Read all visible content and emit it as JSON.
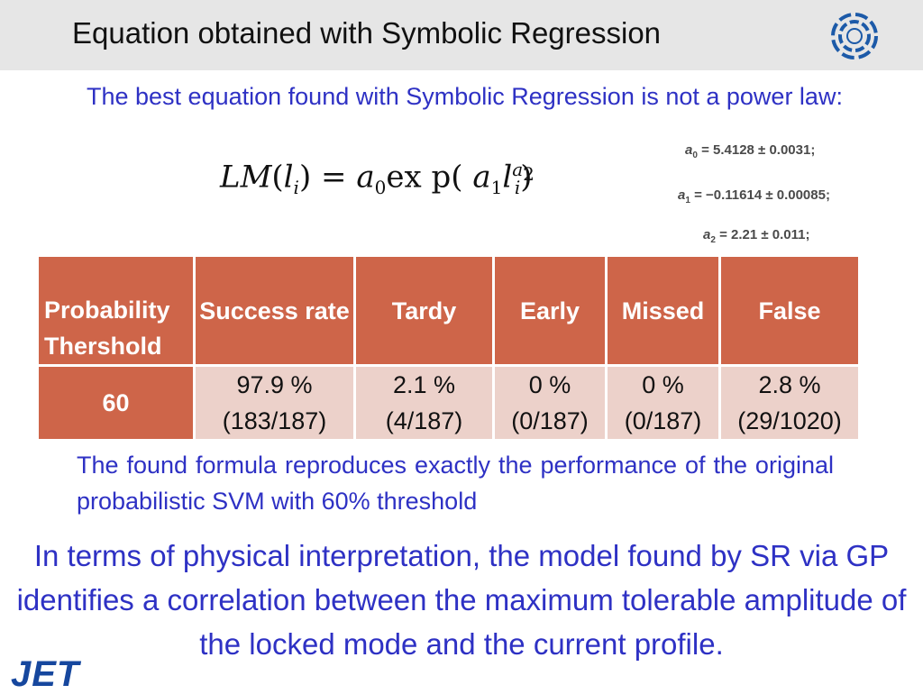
{
  "header": {
    "title": "Equation obtained with Symbolic Regression"
  },
  "intro": {
    "text": "The best equation found with Symbolic Regression is not a power law:"
  },
  "equation": {
    "lhs_func": "LM",
    "lhs_var": "l",
    "lhs_sub": "i",
    "equals": "=",
    "a0": "a",
    "a0_sub": "0",
    "exp": "ex p(",
    "a1": "a",
    "a1_sub": "1",
    "l": "l",
    "l_sub": "i",
    "pow": "a",
    "pow_sub": "2",
    "close": ")"
  },
  "coefficients": [
    {
      "symbol": "a",
      "sub": "0",
      "value": "= 5.4128 ± 0.0031;"
    },
    {
      "symbol": "a",
      "sub": "1",
      "value": "= −0.11614 ± 0.00085;"
    },
    {
      "symbol": "a",
      "sub": "2",
      "value": "= 2.21 ± 0.011;"
    }
  ],
  "table": {
    "headers": [
      "Probability Thershold",
      "Success rate",
      "Tardy",
      "Early",
      "Missed",
      "False"
    ],
    "row": {
      "threshold": "60",
      "success": {
        "pct": "97.9 %",
        "count": "(183/187)"
      },
      "tardy": {
        "pct": "2.1 %",
        "count": "(4/187)"
      },
      "early": {
        "pct": "0 %",
        "count": "(0/187)"
      },
      "missed": {
        "pct": "0 %",
        "count": "(0/187)"
      },
      "false": {
        "pct": "2.8 %",
        "count": "(29/1020)"
      }
    }
  },
  "finding": {
    "text": "The found formula reproduces exactly the performance of the original probabilistic SVM with 60% threshold"
  },
  "interpretation": {
    "text": "In terms of physical interpretation, the model found by SR via GP identifies a correlation between the maximum tolerable amplitude of the locked mode and the current profile."
  },
  "footer": {
    "logo_text": "JET"
  },
  "colors": {
    "header_bg": "#e6e6e6",
    "text_blue": "#2e31c4",
    "table_header": "#ce6549",
    "table_cell": "#ecd1ca",
    "jet_blue": "#16479e"
  }
}
